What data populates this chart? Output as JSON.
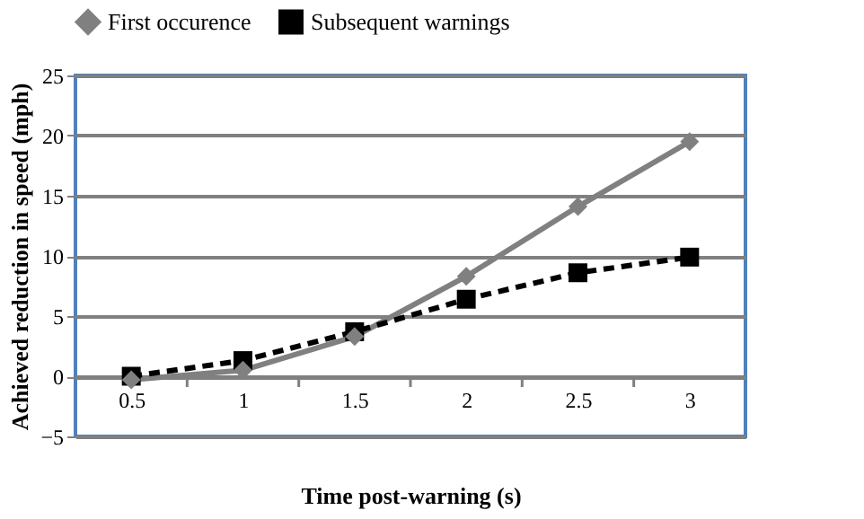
{
  "chart_data": {
    "type": "line",
    "xlabel": "Time post-warning (s)",
    "ylabel": "Achieved reduction in speed (mph)",
    "categories": [
      "0.5",
      "1",
      "1.5",
      "2",
      "2.5",
      "3"
    ],
    "series": [
      {
        "name": "First occurence",
        "color": "#808080",
        "values": [
          -0.3,
          0.5,
          3.3,
          8.3,
          14.1,
          19.5
        ],
        "marker": "diamond",
        "line_style": "solid"
      },
      {
        "name": "Subsequent warnings",
        "color": "#000000",
        "values": [
          0,
          1.3,
          3.7,
          6.4,
          8.6,
          9.9
        ],
        "marker": "square",
        "line_style": "dashed"
      }
    ],
    "ylim": [
      -5,
      25
    ],
    "yticks": [
      -5,
      0,
      5,
      10,
      15,
      20,
      25
    ],
    "grid": "y",
    "legend": "top"
  }
}
